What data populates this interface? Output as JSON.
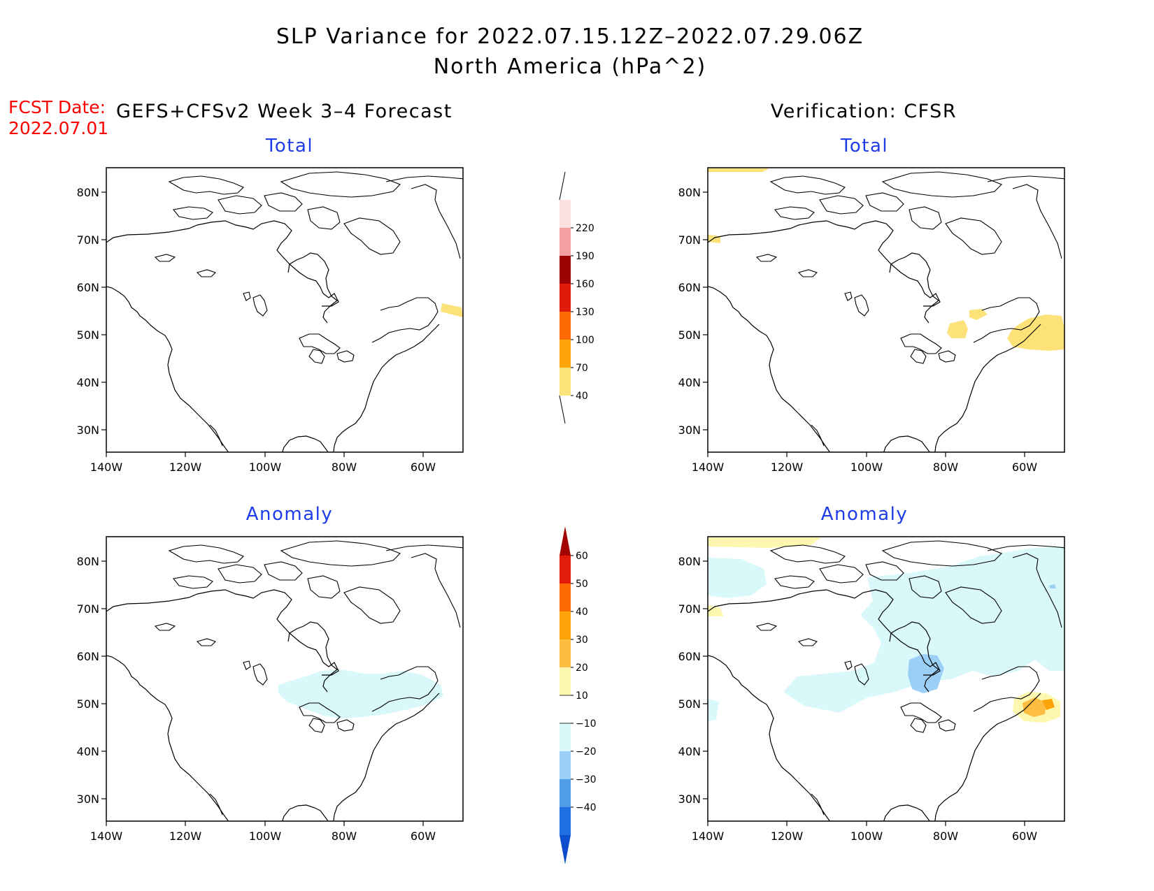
{
  "header": {
    "title_line1": "SLP Variance for 2022.07.15.12Z–2022.07.29.06Z",
    "title_line2": "North America (hPa^2)",
    "fcst_date_label": "FCST Date:",
    "fcst_date_value": "2022.07.01",
    "left_heading": "GEFS+CFSv2 Week 3–4 Forecast",
    "right_heading": "Verification: CFSR"
  },
  "panels": [
    {
      "id": "forecast-total",
      "subtitle": "Total"
    },
    {
      "id": "verification-total",
      "subtitle": "Total"
    },
    {
      "id": "forecast-anomaly",
      "subtitle": "Anomaly"
    },
    {
      "id": "verification-anomaly",
      "subtitle": "Anomaly"
    }
  ],
  "axes": {
    "lon_ticks": [
      "140W",
      "120W",
      "100W",
      "80W",
      "60W"
    ],
    "lat_ticks": [
      "80N",
      "70N",
      "60N",
      "50N",
      "40N",
      "30N"
    ]
  },
  "colorbars": {
    "total": {
      "labels": [
        "40",
        "70",
        "100",
        "130",
        "160",
        "190",
        "220"
      ],
      "colors": [
        "#fde27a",
        "#fca40a",
        "#fc6a05",
        "#e01b0c",
        "#9c0202",
        "#f2a0a0",
        "#fde0e0"
      ]
    },
    "anomaly": {
      "labels": [
        "60",
        "50",
        "40",
        "30",
        "20",
        "10",
        "−10",
        "−20",
        "−30",
        "−40"
      ],
      "colors_top_to_bottom": [
        "#a30303",
        "#e11c0a",
        "#fc6a05",
        "#fca40a",
        "#fdbd40",
        "#fdf7b0",
        "#ffffff",
        "#d9f8fa",
        "#9ccff5",
        "#4f9de8",
        "#1e6fe0",
        "#0b4fd0"
      ]
    }
  },
  "colors": {
    "title_text": "#000000",
    "subtitle_text": "#1e3ce8",
    "fcst_text": "#ff0000"
  }
}
